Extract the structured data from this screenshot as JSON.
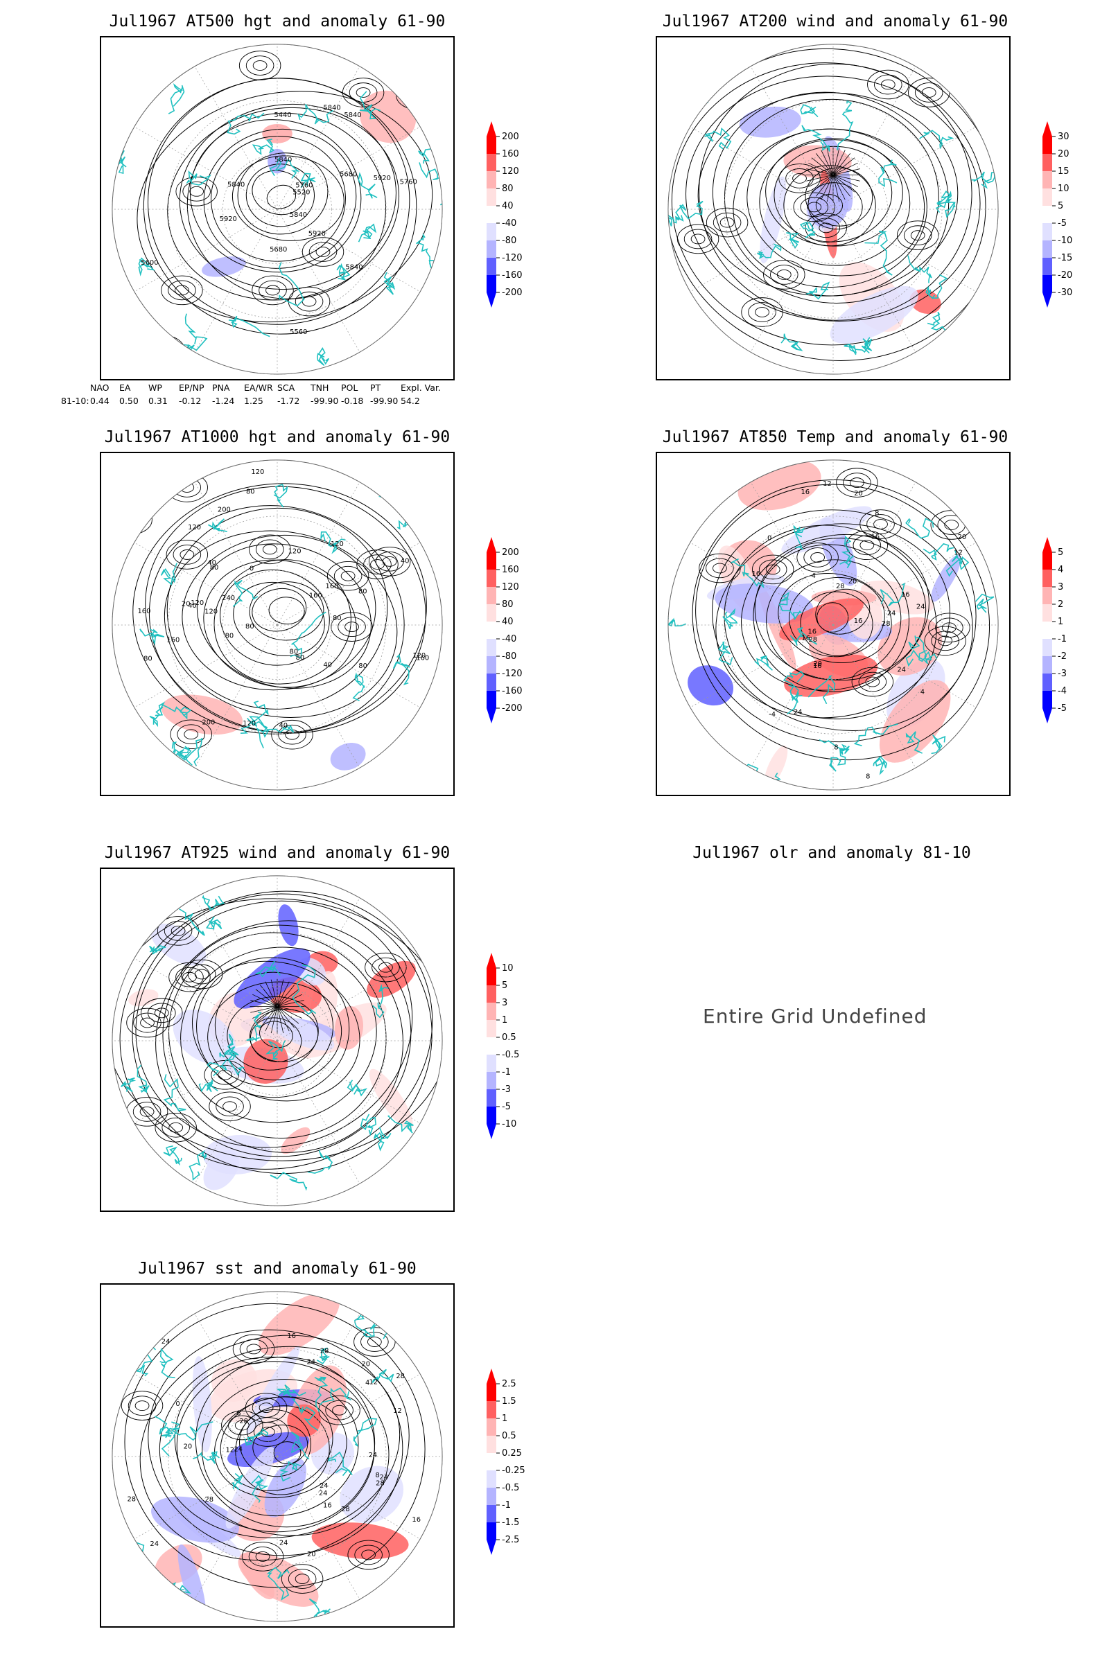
{
  "panels": [
    {
      "id": "p500",
      "title": "Jul1967 AT500 hgt and anomaly 61-90",
      "type": "height",
      "contour_labels": [
        "5840",
        "5840",
        "5840",
        "5760",
        "5680",
        "5920",
        "5560",
        "5440",
        "5520",
        "5600",
        "5680",
        "5760",
        "5840",
        "5920",
        "5920",
        "5840",
        "5840"
      ],
      "colorbar": [
        "200",
        "160",
        "120",
        "80",
        "40",
        "-40",
        "-80",
        "-120",
        "-160",
        "-200"
      ]
    },
    {
      "id": "p200",
      "title": "Jul1967 AT200 wind and anomaly 61-90",
      "type": "wind",
      "contour_labels": [],
      "colorbar": [
        "30",
        "20",
        "15",
        "10",
        "5",
        "-5",
        "-10",
        "-15",
        "-20",
        "-30"
      ]
    },
    {
      "id": "p1000",
      "title": "Jul1967 AT1000 hgt and anomaly 61-90",
      "type": "height",
      "contour_labels": [
        "80",
        "120",
        "120",
        "160",
        "160",
        "240",
        "200",
        "160",
        "80",
        "40",
        "0",
        "40",
        "40",
        "80",
        "120",
        "80",
        "120",
        "160",
        "200",
        "40",
        "80",
        "80",
        "120",
        "40",
        "80",
        "160",
        "120",
        "80",
        "80",
        "120",
        "20",
        "120",
        "80"
      ],
      "colorbar": [
        "200",
        "160",
        "120",
        "80",
        "40",
        "-40",
        "-80",
        "-120",
        "-160",
        "-200"
      ]
    },
    {
      "id": "p850",
      "title": "Jul1967 AT850 Temp and anomaly 61-90",
      "type": "temp",
      "contour_labels": [
        "16",
        "12",
        "8",
        "16",
        "24",
        "20",
        "-4",
        "4",
        "20",
        "24",
        "28",
        "16",
        "16",
        "16",
        "12",
        "8",
        "4",
        "0",
        "20",
        "28",
        "16",
        "24",
        "20",
        "24",
        "28",
        "16",
        "16",
        "8"
      ],
      "colorbar": [
        "5",
        "4",
        "3",
        "2",
        "1",
        "-1",
        "-2",
        "-3",
        "-4",
        "-5"
      ]
    },
    {
      "id": "p925",
      "title": "Jul1967 AT925 wind and anomaly 61-90",
      "type": "wind",
      "contour_labels": [],
      "colorbar": [
        "10",
        "5",
        "3",
        "1",
        "0.5",
        "-0.5",
        "-1",
        "-3",
        "-5",
        "-10"
      ]
    },
    {
      "id": "polr",
      "title": "Jul1967 olr and anomaly 81-10",
      "message": "Entire Grid Undefined"
    },
    {
      "id": "psst",
      "title": "Jul1967 sst and anomaly 61-90",
      "type": "sst",
      "contour_labels": [
        "28",
        "28",
        "24",
        "24",
        "20",
        "20",
        "16",
        "12",
        "16",
        "12",
        "8",
        "28",
        "24",
        "24",
        "28",
        "16",
        "12",
        "8",
        "4",
        "0",
        "28",
        "20",
        "24",
        "28",
        "24",
        "24",
        "28",
        "24",
        "24"
      ],
      "colorbar": [
        "2.5",
        "1.5",
        "1",
        "0.5",
        "0.25",
        "-0.25",
        "-0.5",
        "-1",
        "-1.5",
        "-2.5"
      ]
    }
  ],
  "teleconnection": {
    "headers": [
      "NAO",
      "EA",
      "WP",
      "EP/NP",
      "PNA",
      "EA/WR",
      "SCA",
      "TNH",
      "POL",
      "PT",
      "Expl. Var."
    ],
    "row_label": "81-10:",
    "values": [
      "0.44",
      "0.50",
      "0.31",
      "-0.12",
      "-1.24",
      "1.25",
      "-1.72",
      "-99.90",
      "-0.18",
      "-99.90",
      "54.2"
    ]
  },
  "colors": {
    "frame": "#000000",
    "coast": "#20c0c0",
    "contour": "#000000",
    "grid": "#9a9a9a",
    "red_strong": "#ff0000",
    "red_mid": "#ff6060",
    "red_light": "#ffb4b4",
    "red_pale": "#ffe0e0",
    "blue_pale": "#e0e0ff",
    "blue_light": "#b4b4ff",
    "blue_mid": "#6060ff",
    "blue_strong": "#0000ff"
  }
}
